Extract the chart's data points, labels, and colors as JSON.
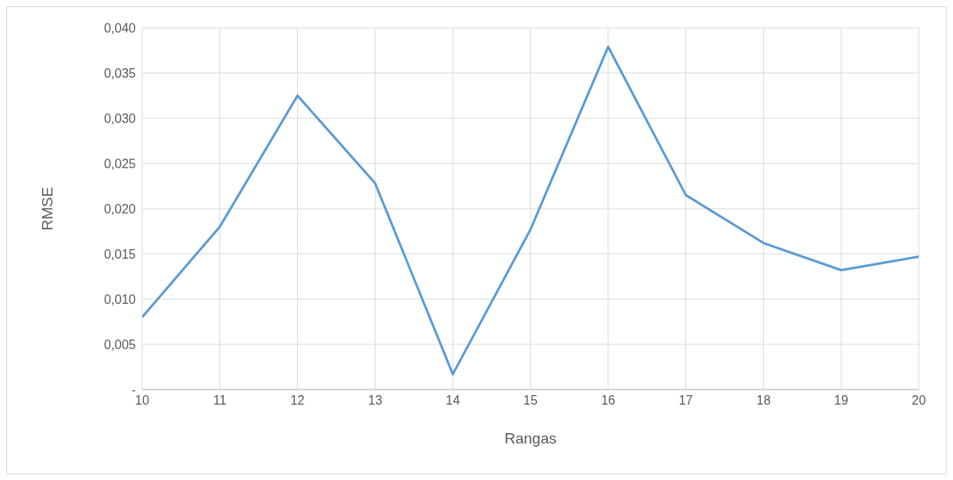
{
  "chart_data": {
    "type": "line",
    "xlabel": "Rangas",
    "ylabel": "RMSE",
    "x": [
      10,
      11,
      12,
      13,
      14,
      15,
      16,
      17,
      18,
      19,
      20
    ],
    "series": [
      {
        "color": "#5b9bd5",
        "values": [
          0.008,
          0.018,
          0.0325,
          0.0228,
          0.0017,
          0.0177,
          0.0379,
          0.0215,
          0.0162,
          0.0132,
          0.0147
        ]
      }
    ],
    "xlim": [
      10,
      20
    ],
    "xticks": [
      10,
      11,
      12,
      13,
      14,
      15,
      16,
      17,
      18,
      19,
      20
    ],
    "ylim": [
      0,
      0.04
    ],
    "yticks": [
      {
        "value": 0,
        "label": "-"
      },
      {
        "value": 0.005,
        "label": "0,005"
      },
      {
        "value": 0.01,
        "label": "0,010"
      },
      {
        "value": 0.015,
        "label": "0,015"
      },
      {
        "value": 0.02,
        "label": "0,020"
      },
      {
        "value": 0.025,
        "label": "0,025"
      },
      {
        "value": 0.03,
        "label": "0,030"
      },
      {
        "value": 0.035,
        "label": "0,035"
      },
      {
        "value": 0.04,
        "label": "0,040"
      }
    ],
    "grid": true,
    "legend": false,
    "marker": "none",
    "line_style": "solid"
  }
}
